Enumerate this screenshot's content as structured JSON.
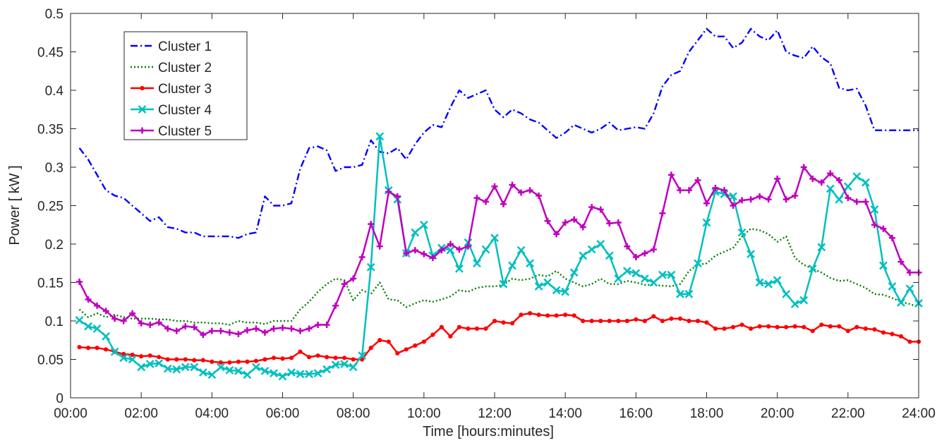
{
  "chart_data": {
    "type": "line",
    "xlabel": "Time [hours:minutes]",
    "ylabel": "Power [ kW ]",
    "xlim": [
      0,
      24
    ],
    "ylim": [
      0,
      0.5
    ],
    "x_ticks": [
      0,
      2,
      4,
      6,
      8,
      10,
      12,
      14,
      16,
      18,
      20,
      22,
      24
    ],
    "x_tick_labels": [
      "00:00",
      "02:00",
      "04:00",
      "06:00",
      "08:00",
      "10:00",
      "12:00",
      "14:00",
      "16:00",
      "18:00",
      "20:00",
      "22:00",
      "24:00"
    ],
    "y_ticks": [
      0,
      0.05,
      0.1,
      0.15,
      0.2,
      0.25,
      0.3,
      0.35,
      0.4,
      0.45,
      0.5
    ],
    "y_tick_labels": [
      "0",
      "0.05",
      "0.1",
      "0.15",
      "0.2",
      "0.25",
      "0.3",
      "0.35",
      "0.4",
      "0.45",
      "0.5"
    ],
    "legend_position": "top-left",
    "x_hours": [
      0.25,
      0.5,
      0.75,
      1.0,
      1.25,
      1.5,
      1.75,
      2.0,
      2.25,
      2.5,
      2.75,
      3.0,
      3.25,
      3.5,
      3.75,
      4.0,
      4.25,
      4.5,
      4.75,
      5.0,
      5.25,
      5.5,
      5.75,
      6.0,
      6.25,
      6.5,
      6.75,
      7.0,
      7.25,
      7.5,
      7.75,
      8.0,
      8.25,
      8.5,
      8.75,
      9.0,
      9.25,
      9.5,
      9.75,
      10.0,
      10.25,
      10.5,
      10.75,
      11.0,
      11.25,
      11.5,
      11.75,
      12.0,
      12.25,
      12.5,
      12.75,
      13.0,
      13.25,
      13.5,
      13.75,
      14.0,
      14.25,
      14.5,
      14.75,
      15.0,
      15.25,
      15.5,
      15.75,
      16.0,
      16.25,
      16.5,
      16.75,
      17.0,
      17.25,
      17.5,
      17.75,
      18.0,
      18.25,
      18.5,
      18.75,
      19.0,
      19.25,
      19.5,
      19.75,
      20.0,
      20.25,
      20.5,
      20.75,
      21.0,
      21.25,
      21.5,
      21.75,
      22.0,
      22.25,
      22.5,
      22.75,
      23.0,
      23.25,
      23.5,
      23.75,
      24.0
    ],
    "series": [
      {
        "name": "Cluster 1",
        "color": "#0000FF",
        "line_style": "dash-dot",
        "marker": "none",
        "values": [
          0.325,
          0.31,
          0.29,
          0.27,
          0.263,
          0.26,
          0.25,
          0.24,
          0.23,
          0.235,
          0.222,
          0.22,
          0.215,
          0.215,
          0.21,
          0.21,
          0.21,
          0.21,
          0.208,
          0.213,
          0.215,
          0.262,
          0.25,
          0.25,
          0.253,
          0.298,
          0.325,
          0.327,
          0.322,
          0.295,
          0.3,
          0.3,
          0.303,
          0.335,
          0.32,
          0.318,
          0.325,
          0.31,
          0.33,
          0.345,
          0.355,
          0.352,
          0.378,
          0.4,
          0.39,
          0.395,
          0.4,
          0.375,
          0.365,
          0.375,
          0.37,
          0.362,
          0.358,
          0.348,
          0.338,
          0.345,
          0.355,
          0.35,
          0.345,
          0.35,
          0.358,
          0.348,
          0.35,
          0.352,
          0.35,
          0.37,
          0.405,
          0.42,
          0.425,
          0.45,
          0.465,
          0.48,
          0.47,
          0.47,
          0.455,
          0.462,
          0.48,
          0.47,
          0.465,
          0.478,
          0.45,
          0.445,
          0.442,
          0.457,
          0.443,
          0.435,
          0.403,
          0.4,
          0.402,
          0.38,
          0.348,
          0.348,
          0.348,
          0.348,
          0.348,
          0.348
        ]
      },
      {
        "name": "Cluster 2",
        "color": "#008000",
        "line_style": "dotted",
        "marker": "none",
        "values": [
          0.115,
          0.105,
          0.11,
          0.105,
          0.108,
          0.105,
          0.103,
          0.103,
          0.103,
          0.102,
          0.102,
          0.1,
          0.1,
          0.098,
          0.098,
          0.097,
          0.097,
          0.095,
          0.1,
          0.098,
          0.098,
          0.096,
          0.1,
          0.1,
          0.1,
          0.115,
          0.125,
          0.138,
          0.148,
          0.155,
          0.153,
          0.127,
          0.14,
          0.135,
          0.15,
          0.128,
          0.127,
          0.118,
          0.123,
          0.127,
          0.125,
          0.128,
          0.132,
          0.14,
          0.138,
          0.143,
          0.145,
          0.145,
          0.147,
          0.155,
          0.153,
          0.155,
          0.16,
          0.158,
          0.165,
          0.155,
          0.15,
          0.145,
          0.148,
          0.155,
          0.148,
          0.148,
          0.152,
          0.15,
          0.147,
          0.147,
          0.146,
          0.145,
          0.148,
          0.165,
          0.173,
          0.175,
          0.185,
          0.19,
          0.195,
          0.21,
          0.22,
          0.218,
          0.213,
          0.203,
          0.21,
          0.182,
          0.173,
          0.168,
          0.163,
          0.156,
          0.152,
          0.153,
          0.148,
          0.143,
          0.135,
          0.134,
          0.13,
          0.125,
          0.122,
          0.118
        ]
      },
      {
        "name": "Cluster 3",
        "color": "#FF0000",
        "line_style": "solid",
        "marker": "dot",
        "values": [
          0.066,
          0.065,
          0.065,
          0.063,
          0.06,
          0.057,
          0.056,
          0.054,
          0.055,
          0.053,
          0.05,
          0.05,
          0.05,
          0.049,
          0.049,
          0.047,
          0.046,
          0.046,
          0.047,
          0.047,
          0.048,
          0.05,
          0.052,
          0.051,
          0.052,
          0.06,
          0.053,
          0.055,
          0.053,
          0.052,
          0.052,
          0.05,
          0.05,
          0.065,
          0.075,
          0.073,
          0.058,
          0.063,
          0.068,
          0.073,
          0.082,
          0.092,
          0.08,
          0.092,
          0.09,
          0.09,
          0.09,
          0.1,
          0.098,
          0.097,
          0.108,
          0.11,
          0.108,
          0.107,
          0.107,
          0.108,
          0.107,
          0.1,
          0.1,
          0.1,
          0.1,
          0.1,
          0.1,
          0.102,
          0.1,
          0.106,
          0.1,
          0.103,
          0.103,
          0.1,
          0.1,
          0.098,
          0.09,
          0.09,
          0.092,
          0.095,
          0.09,
          0.093,
          0.093,
          0.092,
          0.092,
          0.093,
          0.092,
          0.087,
          0.095,
          0.093,
          0.093,
          0.087,
          0.092,
          0.09,
          0.089,
          0.085,
          0.083,
          0.08,
          0.073,
          0.073
        ]
      },
      {
        "name": "Cluster 4",
        "color": "#00BFBF",
        "line_style": "solid",
        "marker": "x",
        "values": [
          0.101,
          0.093,
          0.09,
          0.08,
          0.06,
          0.052,
          0.05,
          0.04,
          0.044,
          0.045,
          0.038,
          0.037,
          0.04,
          0.04,
          0.033,
          0.03,
          0.04,
          0.036,
          0.035,
          0.03,
          0.04,
          0.035,
          0.032,
          0.028,
          0.033,
          0.031,
          0.031,
          0.032,
          0.037,
          0.043,
          0.044,
          0.04,
          0.055,
          0.17,
          0.34,
          0.27,
          0.258,
          0.188,
          0.215,
          0.225,
          0.185,
          0.195,
          0.192,
          0.168,
          0.202,
          0.175,
          0.193,
          0.208,
          0.148,
          0.172,
          0.192,
          0.175,
          0.145,
          0.15,
          0.14,
          0.138,
          0.163,
          0.185,
          0.193,
          0.2,
          0.185,
          0.155,
          0.165,
          0.162,
          0.155,
          0.15,
          0.16,
          0.16,
          0.135,
          0.135,
          0.175,
          0.228,
          0.268,
          0.265,
          0.262,
          0.215,
          0.187,
          0.15,
          0.148,
          0.153,
          0.135,
          0.122,
          0.127,
          0.168,
          0.196,
          0.272,
          0.258,
          0.275,
          0.288,
          0.28,
          0.245,
          0.172,
          0.145,
          0.124,
          0.142,
          0.123
        ]
      },
      {
        "name": "Cluster 5",
        "color": "#BF00BF",
        "line_style": "solid",
        "marker": "plus",
        "values": [
          0.151,
          0.128,
          0.12,
          0.113,
          0.103,
          0.1,
          0.11,
          0.097,
          0.095,
          0.098,
          0.09,
          0.087,
          0.093,
          0.092,
          0.082,
          0.087,
          0.087,
          0.085,
          0.083,
          0.088,
          0.09,
          0.085,
          0.09,
          0.091,
          0.09,
          0.087,
          0.09,
          0.095,
          0.095,
          0.12,
          0.148,
          0.155,
          0.183,
          0.226,
          0.197,
          0.268,
          0.262,
          0.188,
          0.192,
          0.187,
          0.182,
          0.192,
          0.2,
          0.193,
          0.197,
          0.26,
          0.255,
          0.275,
          0.252,
          0.277,
          0.267,
          0.27,
          0.263,
          0.23,
          0.213,
          0.228,
          0.232,
          0.222,
          0.248,
          0.245,
          0.227,
          0.228,
          0.197,
          0.183,
          0.188,
          0.193,
          0.24,
          0.29,
          0.27,
          0.27,
          0.283,
          0.253,
          0.273,
          0.27,
          0.25,
          0.257,
          0.258,
          0.262,
          0.258,
          0.285,
          0.258,
          0.263,
          0.3,
          0.285,
          0.28,
          0.292,
          0.283,
          0.26,
          0.255,
          0.255,
          0.225,
          0.22,
          0.208,
          0.177,
          0.163,
          0.163
        ]
      }
    ]
  }
}
